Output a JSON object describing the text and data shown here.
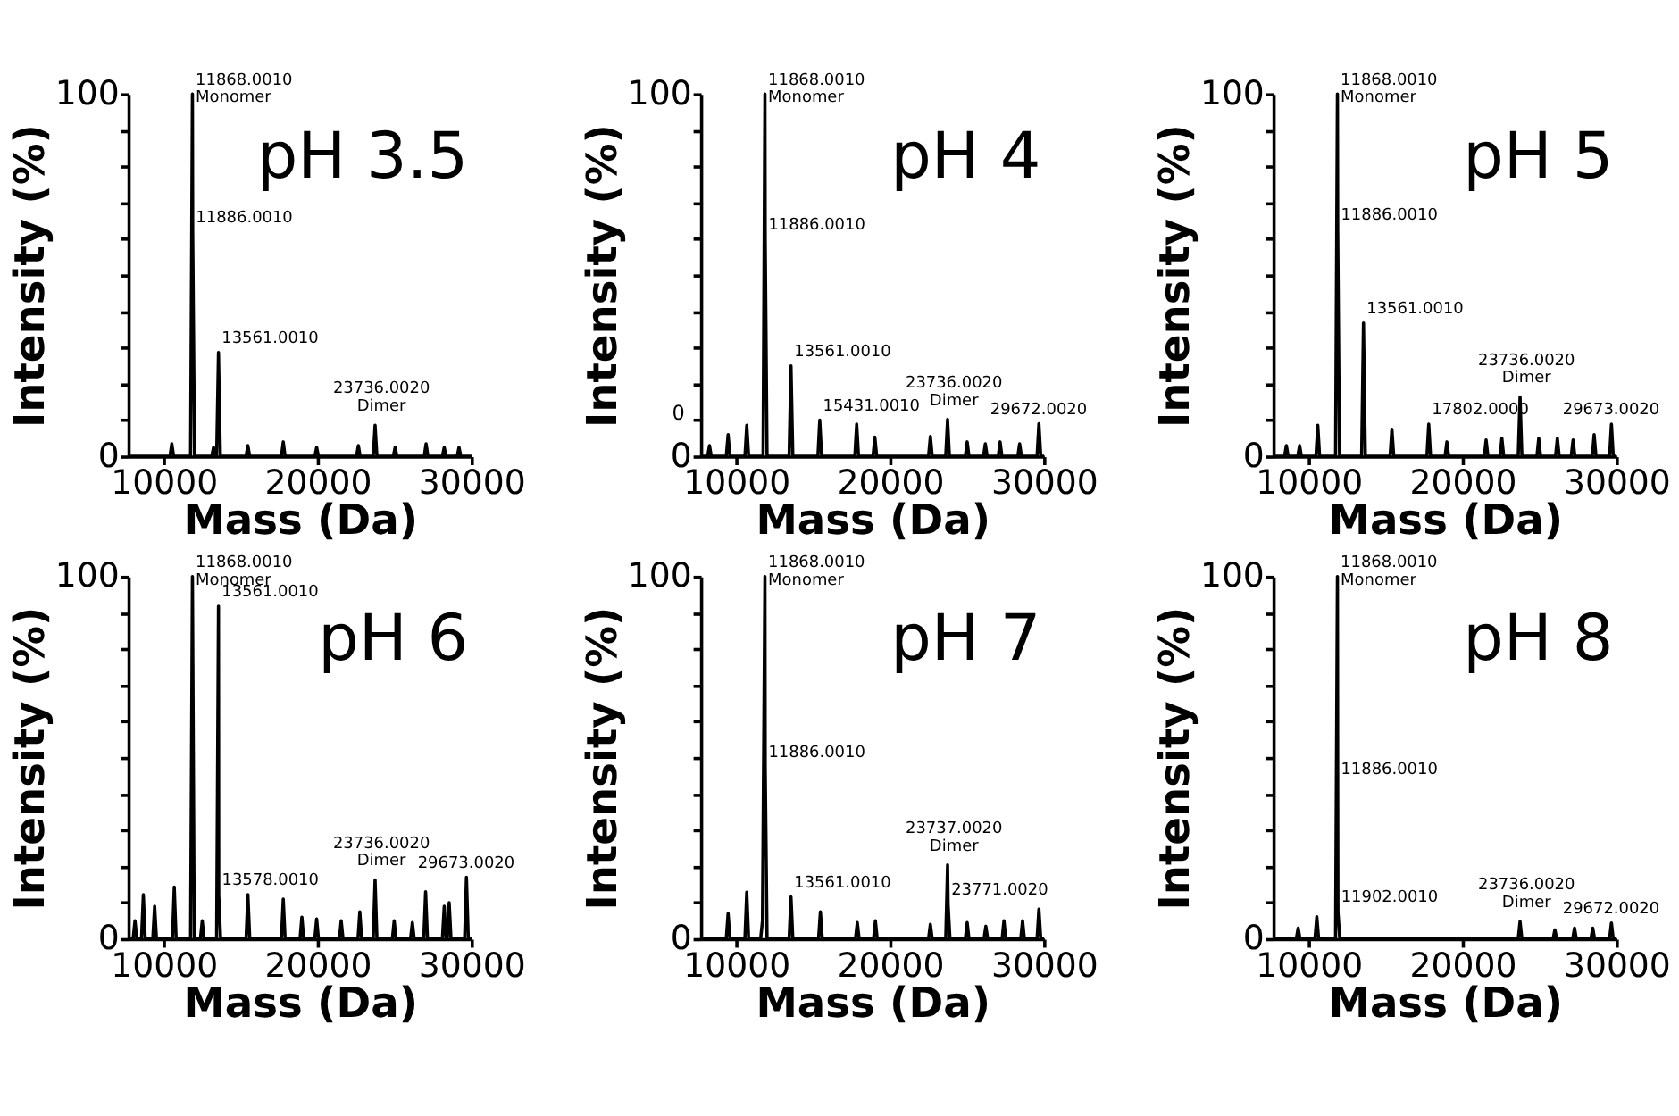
{
  "chart_data": [
    {
      "type": "line",
      "title": "pH 3.5",
      "xlabel": "Mass (Da)",
      "ylabel": "Intensity (%)",
      "xlim": [
        7700,
        30000
      ],
      "xticks": [
        10000,
        20000,
        30000
      ],
      "ylim": [
        0,
        100
      ],
      "yticks": [
        0,
        {
          "value": 10,
          "label": null
        },
        {
          "value": 20,
          "label": null
        },
        {
          "value": 30,
          "label": null
        },
        {
          "value": 40,
          "label": null
        },
        {
          "value": 50,
          "label": null
        },
        {
          "value": 60,
          "label": null
        },
        {
          "value": 70,
          "label": null
        },
        {
          "value": 80,
          "label": null
        },
        {
          "value": 90,
          "label": null
        },
        100
      ],
      "series": [
        {
          "color": "#000000",
          "x": [
            7700,
            10408,
            10528,
            10648,
            11748,
            11868,
            11886,
            12006,
            13120,
            13240,
            13360,
            13441,
            13561,
            13681,
            15350,
            15470,
            15590,
            17650,
            17770,
            17890,
            19820,
            19940,
            20060,
            22530,
            22650,
            22770,
            23616,
            23736,
            23856,
            24920,
            25040,
            25160,
            26930,
            27050,
            27170,
            28110,
            28230,
            28350,
            29070,
            29190,
            29310,
            30000
          ],
          "values": [
            0,
            0,
            3.5,
            0,
            0,
            100,
            62,
            0,
            0,
            2.5,
            0,
            0,
            28.7,
            0,
            0,
            3,
            0,
            0,
            4,
            0,
            0,
            2.5,
            0,
            0,
            3,
            0,
            0,
            8.6,
            0,
            0,
            2.5,
            0,
            0,
            3.5,
            0,
            0,
            2.5,
            0,
            0,
            2.5,
            0,
            0
          ]
        }
      ],
      "annotations": [
        {
          "text": "11868.0010\nMonomer",
          "x": 11868,
          "y": 100
        },
        {
          "text": "11886.0010",
          "x": 11886,
          "y": 62
        },
        {
          "text": "13561.0010",
          "x": 13561,
          "y": 28.7
        },
        {
          "text": "23736.0020\nDimer",
          "x": 23736,
          "y": 8.6
        }
      ]
    },
    {
      "type": "line",
      "title": "pH 4",
      "xlabel": "Mass (Da)",
      "ylabel": "Intensity (%)",
      "xlim": [
        7700,
        30000
      ],
      "xticks": [
        10000,
        20000,
        30000
      ],
      "ylim": [
        0,
        100
      ],
      "yticks": [
        0,
        {
          "value": 10,
          "label": null
        },
        {
          "value": 20,
          "label": null
        },
        {
          "value": 30,
          "label": null
        },
        {
          "value": 40,
          "label": null
        },
        {
          "value": 50,
          "label": null
        },
        {
          "value": 60,
          "label": null
        },
        {
          "value": 70,
          "label": null
        },
        {
          "value": 80,
          "label": null
        },
        {
          "value": 90,
          "label": null
        },
        100
      ],
      "series": [
        {
          "color": "#000000",
          "x": [
            7700,
            8145,
            8265,
            8385,
            9355,
            9475,
            9595,
            10570,
            10690,
            10810,
            11748,
            11868,
            11886,
            12006,
            13441,
            13561,
            13681,
            15311,
            15431,
            15551,
            17710,
            17830,
            17950,
            18890,
            19010,
            19130,
            22500,
            22620,
            22740,
            23616,
            23736,
            23856,
            24890,
            25010,
            25130,
            26070,
            26190,
            26310,
            27030,
            27150,
            27270,
            28300,
            28420,
            28540,
            29552,
            29672,
            29792,
            30000
          ],
          "values": [
            0,
            0,
            3,
            0,
            0,
            6,
            0,
            0,
            8.6,
            0,
            0,
            100,
            60,
            0,
            0,
            25,
            0,
            0,
            10,
            0,
            0,
            8.9,
            0,
            0,
            5.3,
            0,
            0,
            5.5,
            0,
            0,
            10.2,
            0,
            0,
            4,
            0,
            0,
            3.5,
            0,
            0,
            4,
            0,
            0,
            3.5,
            0,
            0,
            9,
            0,
            0
          ]
        }
      ],
      "annotations": [
        {
          "text": "11868.0010\nMonomer",
          "x": 11868,
          "y": 100
        },
        {
          "text": "11886.0010",
          "x": 11886,
          "y": 60
        },
        {
          "text": "13561.0010",
          "x": 13561,
          "y": 25
        },
        {
          "text": "15431.0010",
          "x": 15431,
          "y": 10
        },
        {
          "text": "23736.0020\nDimer",
          "x": 23736,
          "y": 10.2
        },
        {
          "text": "29672.0020",
          "x": 29672,
          "y": 9
        },
        "0"
      ]
    },
    {
      "type": "line",
      "title": "pH 5",
      "xlabel": "Mass (Da)",
      "ylabel": "Intensity (%)",
      "xlim": [
        7700,
        30000
      ],
      "xticks": [
        10000,
        20000,
        30000
      ],
      "ylim": [
        0,
        100
      ],
      "yticks": [
        0,
        {
          "value": 10,
          "label": null
        },
        {
          "value": 20,
          "label": null
        },
        {
          "value": 30,
          "label": null
        },
        {
          "value": 40,
          "label": null
        },
        {
          "value": 50,
          "label": null
        },
        {
          "value": 60,
          "label": null
        },
        {
          "value": 70,
          "label": null
        },
        {
          "value": 80,
          "label": null
        },
        {
          "value": 90,
          "label": null
        },
        100
      ],
      "series": [
        {
          "color": "#000000",
          "x": [
            7700,
            8430,
            8550,
            8670,
            9290,
            9410,
            9530,
            10472,
            10592,
            10712,
            11748,
            11868,
            11886,
            12006,
            13441,
            13561,
            13681,
            15289,
            15409,
            15529,
            17682,
            17802,
            17922,
            18860,
            18980,
            19100,
            21410,
            21530,
            21650,
            22435,
            22555,
            22675,
            23616,
            23736,
            23856,
            24830,
            24950,
            25070,
            26040,
            26160,
            26280,
            27060,
            27180,
            27300,
            28430,
            28550,
            28670,
            29553,
            29673,
            29793,
            30000
          ],
          "values": [
            0,
            0,
            3,
            0,
            0,
            3,
            0,
            0,
            8.6,
            0,
            0,
            100,
            62.7,
            0,
            0,
            36.8,
            0,
            0,
            7.5,
            0,
            0,
            8.9,
            0,
            0,
            4,
            0,
            0,
            4.5,
            0,
            0,
            5,
            0,
            0,
            16.4,
            0,
            0,
            5,
            0,
            0,
            5,
            0,
            0,
            4.5,
            0,
            0,
            6,
            0,
            0,
            8.9,
            0,
            0
          ]
        }
      ],
      "annotations": [
        {
          "text": "11868.0010\nMonomer",
          "x": 11868,
          "y": 100
        },
        {
          "text": "11886.0010",
          "x": 11886,
          "y": 62.7
        },
        {
          "text": "13561.0010",
          "x": 13561,
          "y": 36.8
        },
        {
          "text": "17802.0000",
          "x": 17802,
          "y": 8.9
        },
        {
          "text": "23736.0020\nDimer",
          "x": 23736,
          "y": 16.4
        },
        {
          "text": "29673.0020",
          "x": 29673,
          "y": 8.9
        }
      ]
    },
    {
      "type": "line",
      "title": "pH 6",
      "xlabel": "Mass (Da)",
      "ylabel": "Intensity (%)",
      "xlim": [
        7700,
        30000
      ],
      "xticks": [
        10000,
        20000,
        30000
      ],
      "ylim": [
        0,
        100
      ],
      "yticks": [
        0,
        {
          "value": 10,
          "label": null
        },
        {
          "value": 20,
          "label": null
        },
        {
          "value": 30,
          "label": null
        },
        {
          "value": 40,
          "label": null
        },
        {
          "value": 50,
          "label": null
        },
        {
          "value": 60,
          "label": null
        },
        {
          "value": 70,
          "label": null
        },
        {
          "value": 80,
          "label": null
        },
        {
          "value": 90,
          "label": null
        },
        100
      ],
      "series": [
        {
          "color": "#000000",
          "x": [
            7700,
            8015,
            8135,
            8255,
            8558,
            8678,
            8798,
            9292,
            9412,
            9532,
            10568,
            10688,
            10808,
            11748,
            11868,
            11988,
            12386,
            12506,
            12626,
            13441,
            13561,
            13578,
            13698,
            15353,
            15473,
            15593,
            17650,
            17770,
            17890,
            18860,
            18980,
            19100,
            19819,
            19939,
            20059,
            21415,
            21535,
            21655,
            22625,
            22745,
            22865,
            23616,
            23736,
            23856,
            24858,
            24978,
            25098,
            26040,
            26160,
            26280,
            26900,
            27020,
            27140,
            28110,
            28230,
            28350,
            28430,
            28550,
            28670,
            29553,
            29673,
            29793,
            30000
          ],
          "values": [
            0,
            0,
            5,
            0,
            0,
            12.2,
            0,
            0,
            9,
            0,
            0,
            14.3,
            0,
            0,
            100,
            0,
            0,
            5,
            0,
            0,
            91.8,
            12.2,
            0,
            0,
            12.2,
            0,
            0,
            11,
            0,
            0,
            6,
            0,
            0,
            5.5,
            0,
            0,
            5,
            0,
            0,
            7.5,
            0,
            0,
            16.3,
            0,
            0,
            5,
            0,
            0,
            4.5,
            0,
            0,
            13,
            0,
            0,
            9,
            0,
            0,
            10,
            0,
            0,
            17,
            0,
            0
          ]
        }
      ],
      "annotations": [
        {
          "text": "11868.0010\nMonomer",
          "x": 11868,
          "y": 100
        },
        {
          "text": "13561.0010",
          "x": 13561,
          "y": 91.8
        },
        {
          "text": "13578.0010",
          "x": 13578,
          "y": 12.2
        },
        {
          "text": "23736.0020\nDimer",
          "x": 23736,
          "y": 16.3
        },
        {
          "text": "29673.0020",
          "x": 29673,
          "y": 17
        }
      ]
    },
    {
      "type": "line",
      "title": "pH 7",
      "xlabel": "Mass (Da)",
      "ylabel": "Intensity (%)",
      "xlim": [
        7700,
        30000
      ],
      "xticks": [
        10000,
        20000,
        30000
      ],
      "ylim": [
        0,
        100
      ],
      "yticks": [
        0,
        {
          "value": 10,
          "label": null
        },
        {
          "value": 20,
          "label": null
        },
        {
          "value": 30,
          "label": null
        },
        {
          "value": 40,
          "label": null
        },
        {
          "value": 50,
          "label": null
        },
        {
          "value": 60,
          "label": null
        },
        {
          "value": 70,
          "label": null
        },
        {
          "value": 80,
          "label": null
        },
        {
          "value": 90,
          "label": null
        },
        100
      ],
      "series": [
        {
          "color": "#000000",
          "x": [
            7700,
            9355,
            9475,
            9595,
            10568,
            10688,
            10808,
            11589,
            11709,
            11868,
            11886,
            12006,
            13441,
            13561,
            13681,
            15353,
            15473,
            15593,
            17750,
            17870,
            17990,
            18926,
            19046,
            19166,
            22498,
            22618,
            22738,
            23617,
            23737,
            23771,
            23891,
            24890,
            25010,
            25130,
            26103,
            26223,
            26343,
            27280,
            27400,
            27520,
            28490,
            28610,
            28730,
            29552,
            29672,
            29792,
            30000
          ],
          "values": [
            0,
            0,
            7,
            0,
            0,
            12.9,
            0,
            0,
            5,
            100,
            47.6,
            0,
            0,
            11.6,
            0,
            0,
            7.5,
            0,
            0,
            4.5,
            0,
            0,
            5,
            0,
            0,
            4,
            0,
            0,
            20.4,
            9.5,
            0,
            0,
            4.5,
            0,
            0,
            3.5,
            0,
            0,
            5,
            0,
            0,
            5,
            0,
            0,
            8.2,
            0,
            0
          ]
        }
      ],
      "annotations": [
        {
          "text": "11868.0010\nMonomer",
          "x": 11868,
          "y": 100
        },
        {
          "text": "11886.0010",
          "x": 11886,
          "y": 47.6
        },
        {
          "text": "13561.0010",
          "x": 13561,
          "y": 11.6
        },
        {
          "text": "23737.0020\nDimer",
          "x": 23737,
          "y": 20.4
        },
        {
          "text": "23771.0020",
          "x": 23771,
          "y": 9.5
        }
      ]
    },
    {
      "type": "line",
      "title": "pH 8",
      "xlabel": "Mass (Da)",
      "ylabel": "Intensity (%)",
      "xlim": [
        7700,
        30000
      ],
      "xticks": [
        10000,
        20000,
        30000
      ],
      "ylim": [
        0,
        100
      ],
      "yticks": [
        0,
        {
          "value": 10,
          "label": null
        },
        {
          "value": 20,
          "label": null
        },
        {
          "value": 30,
          "label": null
        },
        {
          "value": 40,
          "label": null
        },
        {
          "value": 50,
          "label": null
        },
        {
          "value": 60,
          "label": null
        },
        {
          "value": 70,
          "label": null
        },
        {
          "value": 80,
          "label": null
        },
        {
          "value": 90,
          "label": null
        },
        100
      ],
      "series": [
        {
          "color": "#000000",
          "x": [
            7700,
            9196,
            9316,
            9436,
            10408,
            10528,
            10648,
            11748,
            11868,
            11886,
            11902,
            12022,
            23616,
            23736,
            23856,
            25880,
            26000,
            26120,
            27155,
            27275,
            27395,
            28340,
            28460,
            28580,
            29552,
            29672,
            29792,
            30000
          ],
          "values": [
            0,
            0,
            3,
            0,
            0,
            6.1,
            0,
            0,
            100,
            42.9,
            7.5,
            0,
            0,
            4.8,
            0,
            0,
            2.5,
            0,
            0,
            3,
            0,
            0,
            3,
            0,
            0,
            4.4,
            0,
            0
          ]
        }
      ],
      "annotations": [
        {
          "text": "11868.0010\nMonomer",
          "x": 11868,
          "y": 100
        },
        {
          "text": "11886.0010",
          "x": 11886,
          "y": 42.9
        },
        {
          "text": "11902.0010",
          "x": 11902,
          "y": 7.5
        },
        {
          "text": "23736.0020\nDimer",
          "x": 23736,
          "y": 4.8
        },
        {
          "text": "29672.0020",
          "x": 29672,
          "y": 4.4
        }
      ]
    }
  ]
}
